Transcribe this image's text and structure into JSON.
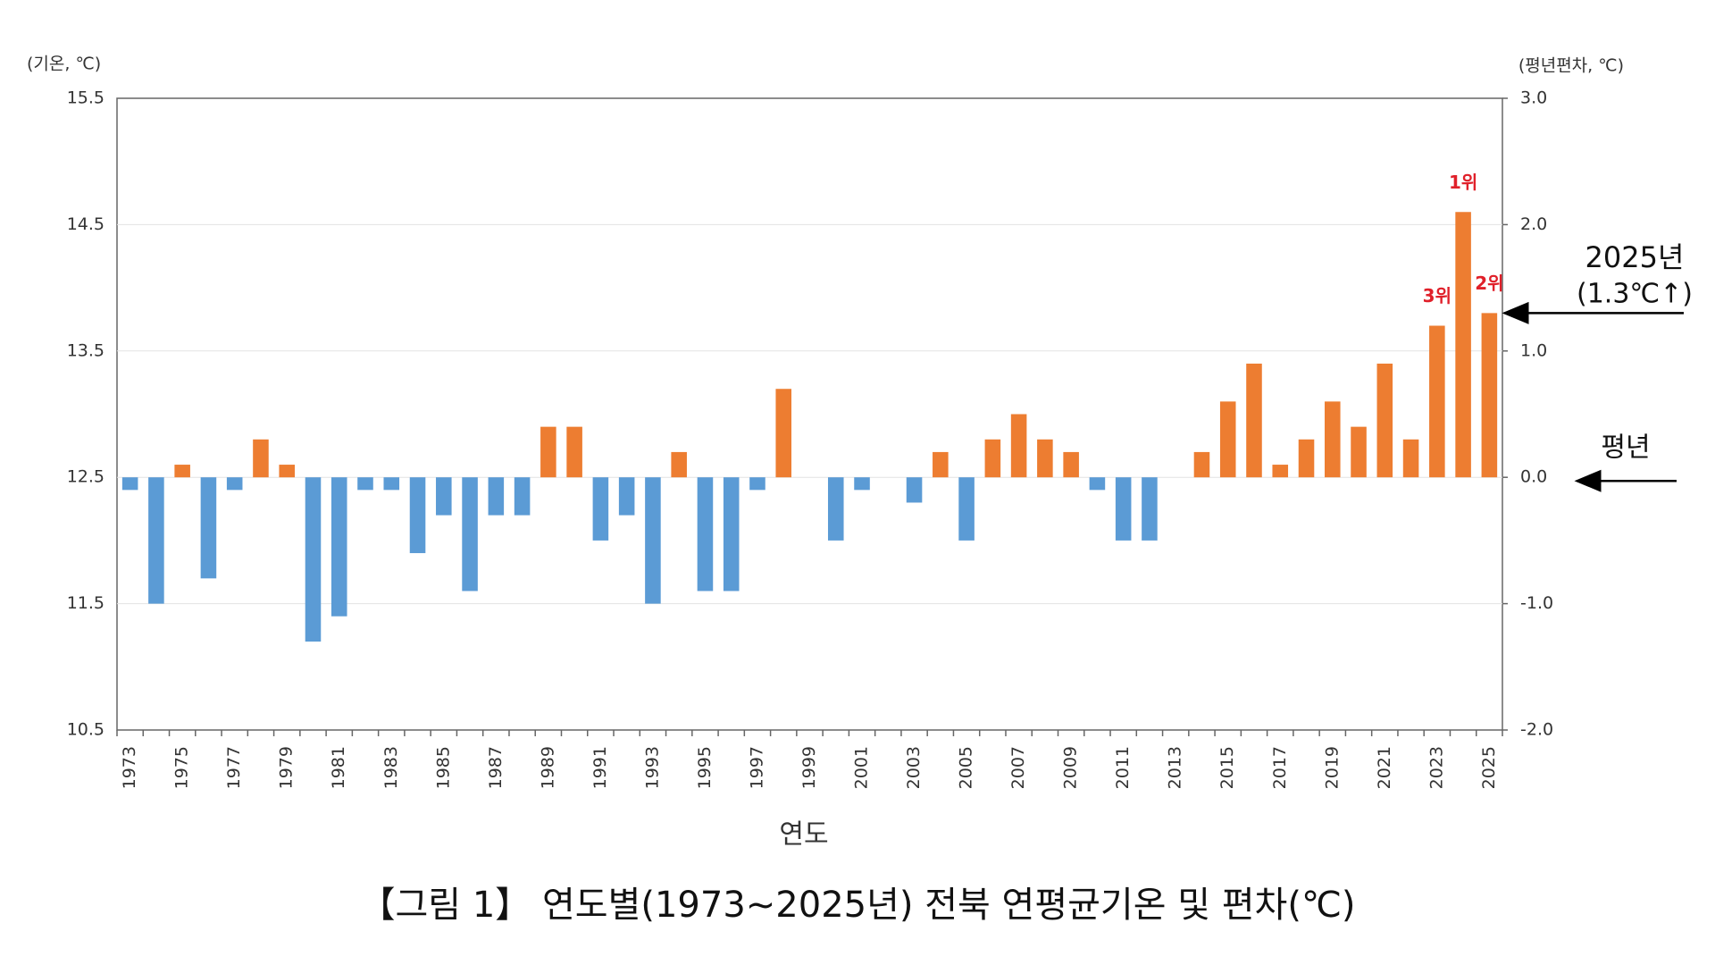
{
  "chart_data": {
    "type": "bar",
    "title": "【그림 1】 연도별(1973~2025년) 전북 연평균기온 및 편차(℃)",
    "y_label": "(기온, ℃)",
    "y2_label": "(평년편차, ℃)",
    "x_label": "연도",
    "categories": [
      1973,
      null,
      1975,
      null,
      1977,
      null,
      1979,
      null,
      1981,
      null,
      1983,
      null,
      1985,
      null,
      1987,
      null,
      1989,
      null,
      1991,
      null,
      1993,
      null,
      1995,
      null,
      1997,
      null,
      1999,
      null,
      2001,
      null,
      2003,
      null,
      2005,
      null,
      2007,
      null,
      2009,
      null,
      2011,
      null,
      2013,
      null,
      2015,
      null,
      2017,
      null,
      2019,
      null,
      2021,
      null,
      2023,
      null,
      2025
    ],
    "series": [
      {
        "axis": "y2",
        "values": [
          -0.1,
          -1.0,
          0.1,
          -0.8,
          -0.1,
          0.3,
          0.1,
          -1.3,
          -1.1,
          -0.1,
          -0.1,
          -0.6,
          -0.3,
          -0.9,
          -0.3,
          -0.3,
          0.4,
          0.4,
          -0.5,
          -0.3,
          -1.0,
          0.2,
          -0.9,
          -0.9,
          -0.1,
          0.7,
          0.0,
          -0.5,
          -0.1,
          0.0,
          -0.2,
          0.2,
          -0.5,
          0.3,
          0.5,
          0.3,
          0.2,
          -0.1,
          -0.5,
          -0.5,
          0.0,
          0.2,
          0.6,
          0.9,
          0.1,
          0.3,
          0.6,
          0.4,
          0.9,
          0.3,
          1.2,
          2.1,
          1.3
        ],
        "rank_labels": [
          null,
          null,
          null,
          null,
          null,
          null,
          null,
          null,
          null,
          null,
          null,
          null,
          null,
          null,
          null,
          null,
          null,
          null,
          null,
          null,
          null,
          null,
          null,
          null,
          null,
          null,
          null,
          null,
          null,
          null,
          null,
          null,
          null,
          null,
          null,
          null,
          null,
          null,
          null,
          null,
          null,
          null,
          null,
          null,
          null,
          null,
          null,
          null,
          null,
          null,
          "3위",
          "1위",
          "2위"
        ]
      }
    ],
    "positive_color": "#ed7d31",
    "negative_color": "#5b9bd5",
    "rank_color": "#e0202a",
    "ylim": [
      10.5,
      15.5
    ],
    "yticks": [
      10.5,
      11.5,
      12.5,
      13.5,
      14.5,
      15.5
    ],
    "y2lim": [
      -2,
      3
    ],
    "y2ticks": [
      {
        "value": -2,
        "label": "-2.0"
      },
      {
        "value": -1,
        "label": "-1.0"
      },
      {
        "value": 0,
        "label": "0.0"
      },
      {
        "value": 1,
        "label": "1.0"
      },
      {
        "value": 2,
        "label": "2.0"
      },
      {
        "value": 3,
        "label": "3.0"
      }
    ],
    "grid": true,
    "annotations": {
      "latest_year": "2025년",
      "latest_change": "(1.3℃↑)",
      "normal": "평년"
    }
  }
}
